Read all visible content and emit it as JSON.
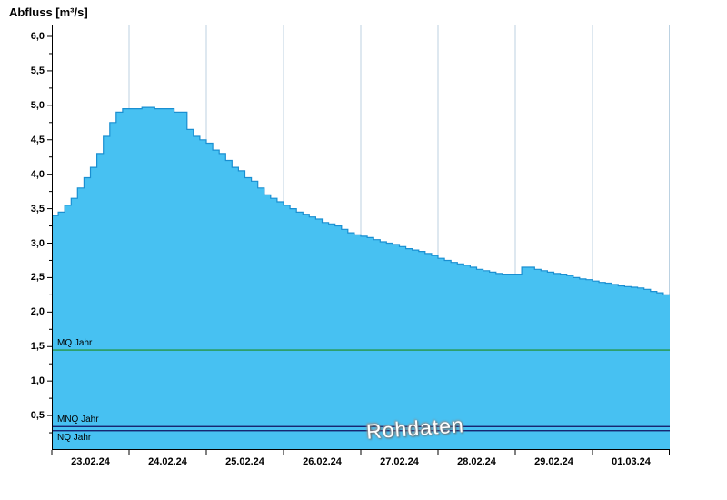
{
  "title": "Abfluss [m³/s]",
  "watermark": "Rohdaten",
  "ref_lines": [
    {
      "name": "MQ Jahr",
      "value": 1.45,
      "color": "#1e8c1e",
      "label_pos": "above"
    },
    {
      "name": "MNQ Jahr",
      "value": 0.34,
      "color": "#101060",
      "label_pos": "above"
    },
    {
      "name": "NQ Jahr",
      "value": 0.28,
      "color": "#101060",
      "label_pos": "below"
    }
  ],
  "chart_data": {
    "type": "area",
    "title": "Abfluss [m³/s]",
    "ylabel": "Abfluss [m³/s]",
    "xlabel": "",
    "ylim": [
      0,
      6
    ],
    "x_days": 8,
    "step_hours": 2,
    "grid": "vertical-only",
    "legend": "none",
    "colors": {
      "fill": "#47c1f2",
      "edge": "#1a8fd1",
      "grid": "#bcd2e2",
      "axis": "#000000"
    },
    "y_ticks": [
      {
        "value": 6.0,
        "label": "6,0"
      },
      {
        "value": 5.5,
        "label": "5,5"
      },
      {
        "value": 5.0,
        "label": "5,0"
      },
      {
        "value": 4.5,
        "label": "4,5"
      },
      {
        "value": 4.0,
        "label": "4,0"
      },
      {
        "value": 3.5,
        "label": "3,5"
      },
      {
        "value": 3.0,
        "label": "3,0"
      },
      {
        "value": 2.5,
        "label": "2,5"
      },
      {
        "value": 2.0,
        "label": "2,0"
      },
      {
        "value": 1.5,
        "label": "1,5"
      },
      {
        "value": 1.0,
        "label": "1,0"
      },
      {
        "value": 0.5,
        "label": "0,5"
      }
    ],
    "x_ticks": [
      {
        "label": "23.02.24",
        "center": 0.5
      },
      {
        "label": "24.02.24",
        "center": 1.5
      },
      {
        "label": "25.02.24",
        "center": 2.5
      },
      {
        "label": "26.02.24",
        "center": 3.5
      },
      {
        "label": "27.02.24",
        "center": 4.5
      },
      {
        "label": "28.02.24",
        "center": 5.5
      },
      {
        "label": "29.02.24",
        "center": 6.5
      },
      {
        "label": "01.03.24",
        "center": 7.5
      }
    ],
    "values": [
      3.4,
      3.45,
      3.55,
      3.65,
      3.8,
      3.95,
      4.1,
      4.3,
      4.55,
      4.75,
      4.9,
      4.95,
      4.95,
      4.95,
      4.97,
      4.97,
      4.95,
      4.95,
      4.95,
      4.9,
      4.9,
      4.65,
      4.55,
      4.5,
      4.45,
      4.35,
      4.3,
      4.2,
      4.1,
      4.05,
      3.95,
      3.9,
      3.8,
      3.7,
      3.65,
      3.6,
      3.55,
      3.5,
      3.45,
      3.42,
      3.38,
      3.35,
      3.3,
      3.28,
      3.25,
      3.2,
      3.15,
      3.12,
      3.1,
      3.08,
      3.05,
      3.02,
      3.0,
      2.98,
      2.95,
      2.92,
      2.9,
      2.88,
      2.85,
      2.82,
      2.78,
      2.75,
      2.72,
      2.7,
      2.68,
      2.65,
      2.62,
      2.6,
      2.58,
      2.56,
      2.55,
      2.55,
      2.55,
      2.65,
      2.65,
      2.62,
      2.6,
      2.58,
      2.56,
      2.55,
      2.53,
      2.5,
      2.48,
      2.47,
      2.45,
      2.43,
      2.42,
      2.4,
      2.38,
      2.37,
      2.36,
      2.35,
      2.33,
      2.3,
      2.28,
      2.25
    ]
  }
}
